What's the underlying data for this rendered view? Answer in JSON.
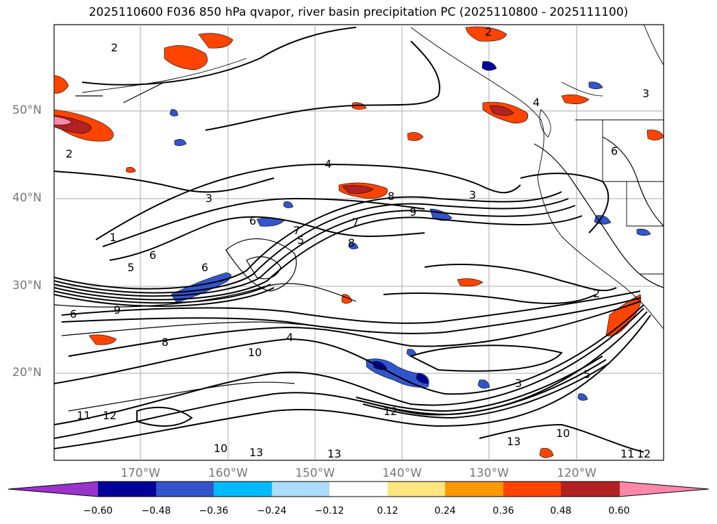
{
  "title": "2025110600 F036 850 hPa qvapor, river basin precipitation PC (2025110800 - 2025111100)",
  "latitude_labels": [
    "50°N",
    "40°N",
    "30°N",
    "20°N"
  ],
  "longitude_labels": [
    "170°W",
    "160°W",
    "150°W",
    "140°W",
    "130°W",
    "120°W"
  ],
  "colorbar": {
    "tick_labels": [
      "−0.60",
      "−0.48",
      "−0.36",
      "−0.24",
      "−0.12",
      "0.12",
      "0.24",
      "0.36",
      "0.48",
      "0.60"
    ],
    "colors": [
      "#9933cc",
      "#000099",
      "#3355cc",
      "#00bbff",
      "#aaddff",
      "#ffffff",
      "#ffe680",
      "#ff9900",
      "#ff4400",
      "#b22222",
      "#ff88aa"
    ]
  },
  "contour_labels": [
    "2",
    "2",
    "2",
    "3",
    "3",
    "4",
    "6",
    "8",
    "9",
    "3",
    "6",
    "7",
    "7",
    "8",
    "6",
    "5",
    "5",
    "6",
    "9",
    "12",
    "10",
    "4",
    "11",
    "12",
    "10",
    "13",
    "13",
    "10",
    "11",
    "12",
    "13",
    "2",
    "1",
    "6",
    "4",
    "5",
    "3",
    "8"
  ]
}
